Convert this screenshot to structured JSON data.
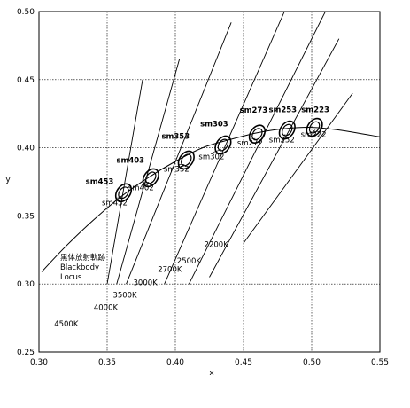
{
  "chart_data": {
    "type": "scatter",
    "xlabel": "x",
    "ylabel": "y",
    "xlim": [
      0.3,
      0.55
    ],
    "ylim": [
      0.25,
      0.5
    ],
    "x_ticks": [
      "0.30",
      "0.35",
      "0.40",
      "0.45",
      "0.50",
      "0.55"
    ],
    "y_ticks": [
      "0.25",
      "0.30",
      "0.35",
      "0.40",
      "0.45",
      "0.50"
    ],
    "grid": "dashed",
    "locus_label": [
      "黒体放射軌跡",
      "Blackbody",
      "Locus"
    ],
    "blackbody_locus": [
      [
        0.302,
        0.309
      ],
      [
        0.32,
        0.328
      ],
      [
        0.34,
        0.347
      ],
      [
        0.36,
        0.364
      ],
      [
        0.38,
        0.378
      ],
      [
        0.4,
        0.39
      ],
      [
        0.42,
        0.4
      ],
      [
        0.44,
        0.406
      ],
      [
        0.46,
        0.411
      ],
      [
        0.48,
        0.414
      ],
      [
        0.5,
        0.415
      ],
      [
        0.52,
        0.413
      ],
      [
        0.55,
        0.408
      ]
    ],
    "cct_lines": [
      {
        "label": "4500K",
        "from": [
          0.35,
          0.3
        ],
        "to": [
          0.376,
          0.45
        ]
      },
      {
        "label": "4000K",
        "from": [
          0.357,
          0.3
        ],
        "to": [
          0.403,
          0.465
        ]
      },
      {
        "label": "3500K",
        "from": [
          0.364,
          0.3
        ],
        "to": [
          0.441,
          0.492
        ]
      },
      {
        "label": "3000K",
        "from": [
          0.392,
          0.3
        ],
        "to": [
          0.48,
          0.5
        ]
      },
      {
        "label": "2700K",
        "from": [
          0.41,
          0.3
        ],
        "to": [
          0.51,
          0.5
        ]
      },
      {
        "label": "2500K",
        "from": [
          0.425,
          0.305
        ],
        "to": [
          0.52,
          0.48
        ]
      },
      {
        "label": "2200K",
        "from": [
          0.45,
          0.33
        ],
        "to": [
          0.53,
          0.44
        ]
      }
    ],
    "cct_label_positions": [
      [
        0.32,
        0.269
      ],
      [
        0.349,
        0.281
      ],
      [
        0.363,
        0.29
      ],
      [
        0.378,
        0.299
      ],
      [
        0.396,
        0.309
      ],
      [
        0.41,
        0.315
      ],
      [
        0.43,
        0.327
      ]
    ],
    "ellipses": [
      {
        "name": "sm453",
        "center": [
          0.362,
          0.367
        ],
        "center_label": "sm452"
      },
      {
        "name": "sm403",
        "center": [
          0.382,
          0.378
        ],
        "center_label": "sm402"
      },
      {
        "name": "sm353",
        "center": [
          0.408,
          0.391
        ],
        "center_label": "sm352"
      },
      {
        "name": "sm303",
        "center": [
          0.435,
          0.402
        ],
        "center_label": "sm302"
      },
      {
        "name": "sm273",
        "center": [
          0.46,
          0.41
        ],
        "center_label": "sm272"
      },
      {
        "name": "sm253",
        "center": [
          0.482,
          0.413
        ],
        "center_label": "sm252"
      },
      {
        "name": "sm223",
        "center": [
          0.502,
          0.415
        ],
        "center_label": "sm222"
      }
    ],
    "ellipse_label_offsets": [
      [
        -27,
        -10
      ],
      [
        -23,
        -17
      ],
      [
        -12,
        -24
      ],
      [
        -10,
        -21
      ],
      [
        -4,
        -24
      ],
      [
        -5,
        -20
      ],
      [
        1,
        -17
      ]
    ],
    "center_label_offsets": [
      [
        -10,
        14
      ],
      [
        -11,
        14
      ],
      [
        -11,
        13
      ],
      [
        -13,
        16
      ],
      [
        -8,
        13
      ],
      [
        -6,
        14
      ],
      [
        -1,
        11
      ]
    ],
    "colors": {
      "line": "#000000",
      "grid": "#000000",
      "background": "#ffffff"
    }
  }
}
